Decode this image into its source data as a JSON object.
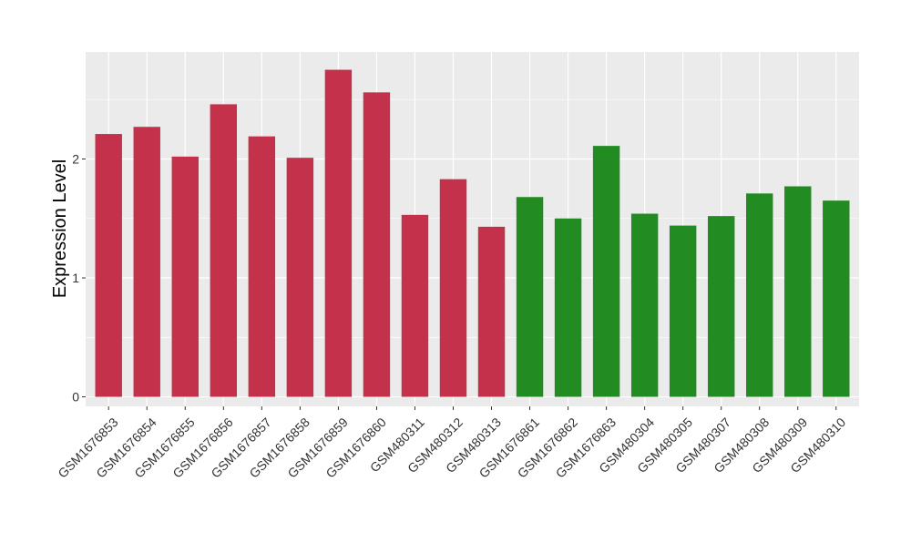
{
  "chart_data": {
    "type": "bar",
    "title": "",
    "xlabel": "",
    "ylabel": "Expression Level",
    "ylim": [
      -0.08,
      2.9
    ],
    "yticks": [
      0,
      1,
      2
    ],
    "grid": true,
    "legend": "none",
    "panel_background": "#ebebeb",
    "grid_color": "#ffffff",
    "categories": [
      "GSM1676853",
      "GSM1676854",
      "GSM1676855",
      "GSM1676856",
      "GSM1676857",
      "GSM1676858",
      "GSM1676859",
      "GSM1676860",
      "GSM480311",
      "GSM480312",
      "GSM480313",
      "GSM1676861",
      "GSM1676862",
      "GSM1676863",
      "GSM480304",
      "GSM480305",
      "GSM480307",
      "GSM480308",
      "GSM480309",
      "GSM480310"
    ],
    "values": [
      2.21,
      2.27,
      2.02,
      2.46,
      2.19,
      2.01,
      2.75,
      2.56,
      1.53,
      1.83,
      1.43,
      1.68,
      1.5,
      2.11,
      1.54,
      1.44,
      1.52,
      1.71,
      1.77,
      1.65
    ],
    "colors": [
      "#c3314a",
      "#c3314a",
      "#c3314a",
      "#c3314a",
      "#c3314a",
      "#c3314a",
      "#c3314a",
      "#c3314a",
      "#c3314a",
      "#c3314a",
      "#c3314a",
      "#228b22",
      "#228b22",
      "#228b22",
      "#228b22",
      "#228b22",
      "#228b22",
      "#228b22",
      "#228b22",
      "#228b22"
    ]
  }
}
